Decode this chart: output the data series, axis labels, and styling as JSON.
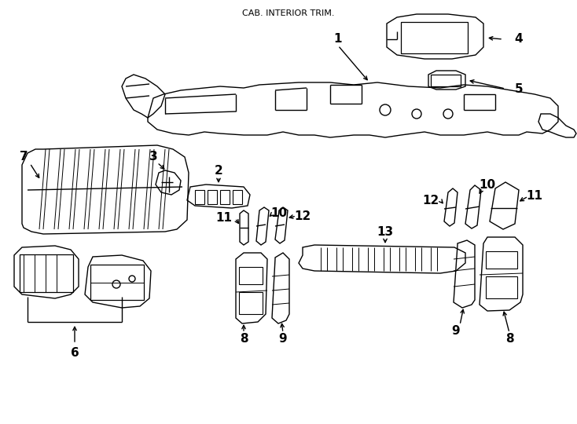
{
  "title": "CAB. INTERIOR TRIM.",
  "bg_color": "#ffffff",
  "line_color": "#000000",
  "figsize": [
    7.34,
    5.4
  ],
  "dpi": 100
}
